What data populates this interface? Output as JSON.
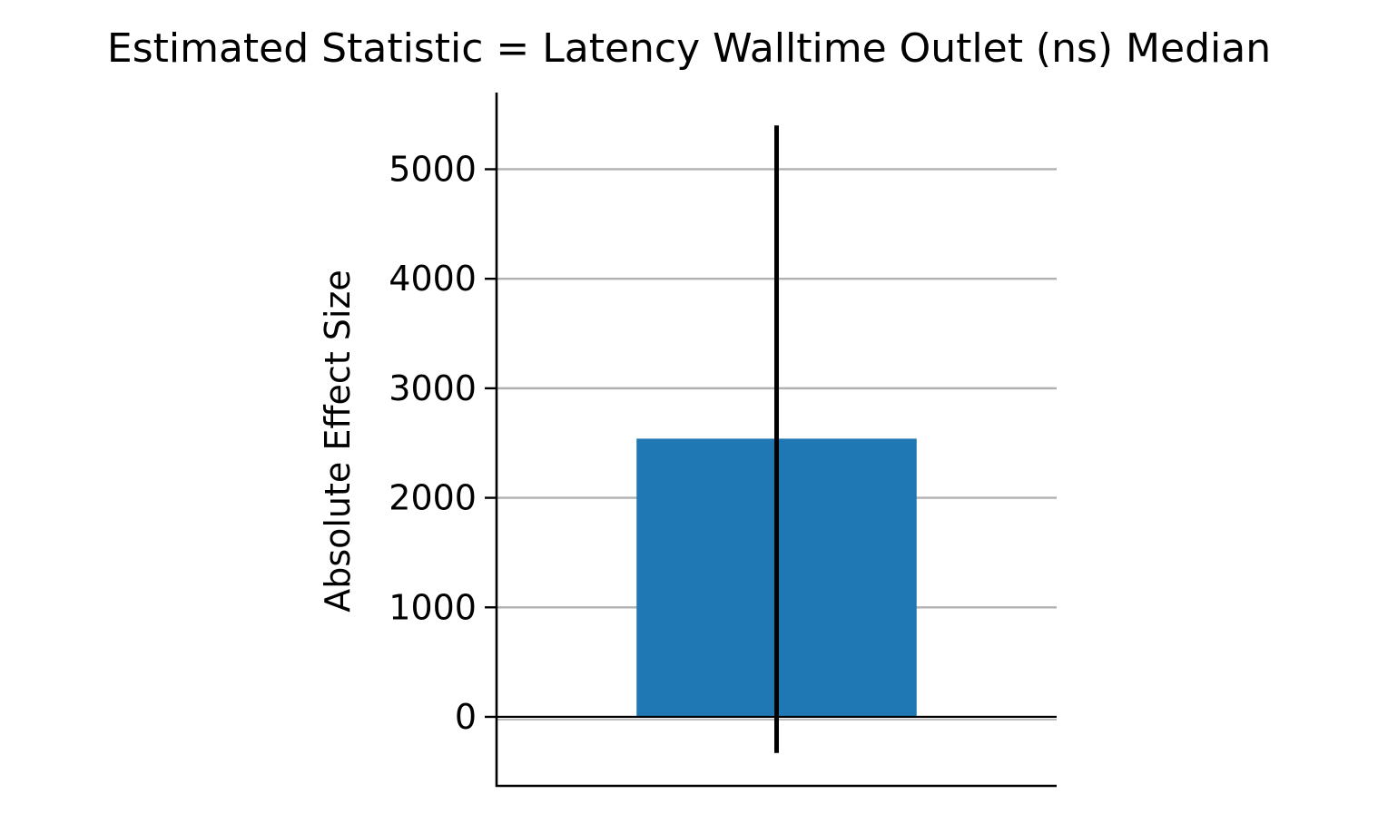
{
  "chart_data": {
    "type": "bar",
    "title": "Estimated Statistic = Latency Walltime Outlet (ns) Median",
    "xlabel": "",
    "ylabel": "Absolute Effect Size",
    "categories": [
      ""
    ],
    "values": [
      2540
    ],
    "error_bars": [
      {
        "low": -330,
        "high": 5400
      }
    ],
    "ylim": [
      -630,
      5700
    ],
    "yticks": [
      0,
      1000,
      2000,
      3000,
      4000,
      5000
    ],
    "ytick_labels": [
      "0",
      "1000",
      "2000",
      "3000",
      "4000",
      "5000"
    ],
    "grid": "horizontal",
    "reference_line": 0,
    "legend": "none",
    "colors": {
      "bar": "#1f77b4",
      "grid": "#b0b0b0",
      "error_bar": "#000000",
      "axis": "#000000"
    }
  }
}
